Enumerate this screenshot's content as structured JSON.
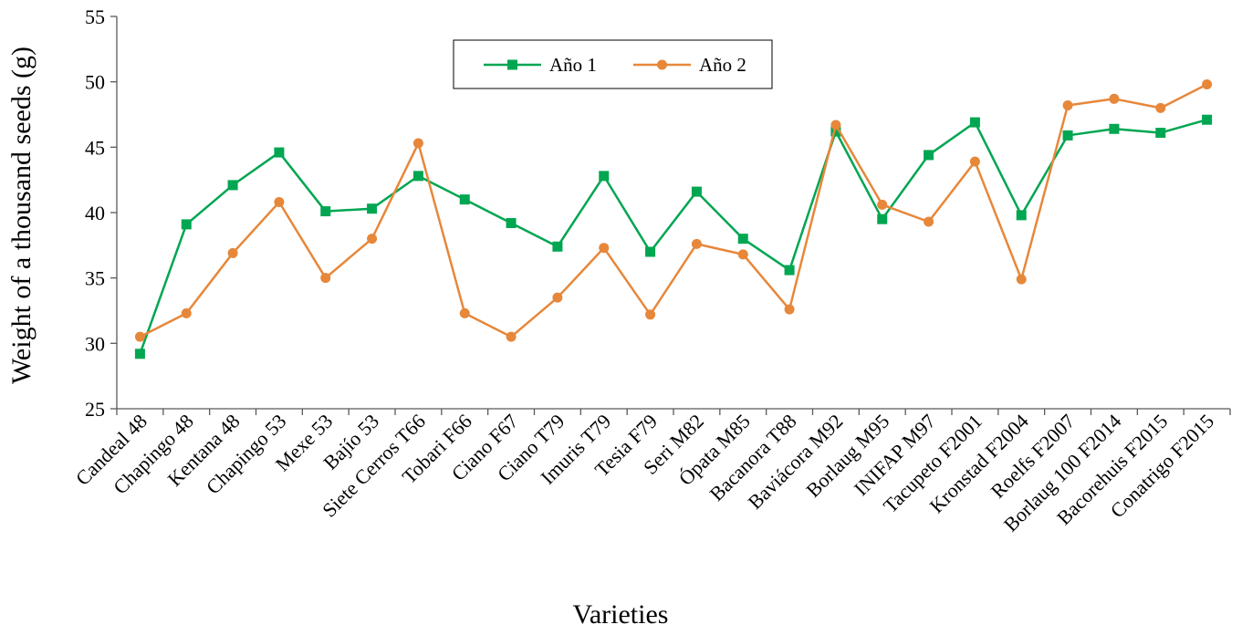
{
  "chart_data": {
    "type": "line",
    "title": "",
    "xlabel": "Varieties",
    "ylabel": "Weight of a thousand seeds (g)",
    "ylim": [
      25,
      55
    ],
    "yticks": [
      25,
      30,
      35,
      40,
      45,
      50,
      55
    ],
    "grid": false,
    "legend_position": "top-center",
    "categories": [
      "Candeal 48",
      "Chapingo 48",
      "Kentana 48",
      "Chapingo 53",
      "Mexe 53",
      "Bajío 53",
      "Siete Cerros T66",
      "Tobari F66",
      "Ciano F67",
      "Ciano T79",
      "Imuris T79",
      "Tesia F79",
      "Seri M82",
      "Ópata M85",
      "Bacanora T88",
      "Baviácora M92",
      "Borlaug M95",
      "INIFAP M97",
      "Tacupeto F2001",
      "Kronstad F2004",
      "Roelfs F2007",
      "Borlaug 100 F2014",
      "Bacorehuis F2015",
      "Conatrigo F2015"
    ],
    "series": [
      {
        "name": "Año 1",
        "color": "#00A651",
        "marker": "square",
        "values": [
          29.2,
          39.1,
          42.1,
          44.6,
          40.1,
          40.3,
          42.8,
          41.0,
          39.2,
          37.4,
          42.8,
          37.0,
          41.6,
          38.0,
          35.6,
          46.2,
          39.5,
          44.4,
          46.9,
          39.8,
          45.9,
          46.4,
          46.1,
          47.1
        ]
      },
      {
        "name": "Año 2",
        "color": "#E7873A",
        "marker": "circle",
        "values": [
          30.5,
          32.3,
          36.9,
          40.8,
          35.0,
          38.0,
          45.3,
          32.3,
          30.5,
          33.5,
          37.3,
          32.2,
          37.6,
          36.8,
          32.6,
          46.7,
          40.6,
          39.3,
          43.9,
          34.9,
          48.2,
          48.7,
          48.0,
          49.8
        ]
      }
    ]
  }
}
